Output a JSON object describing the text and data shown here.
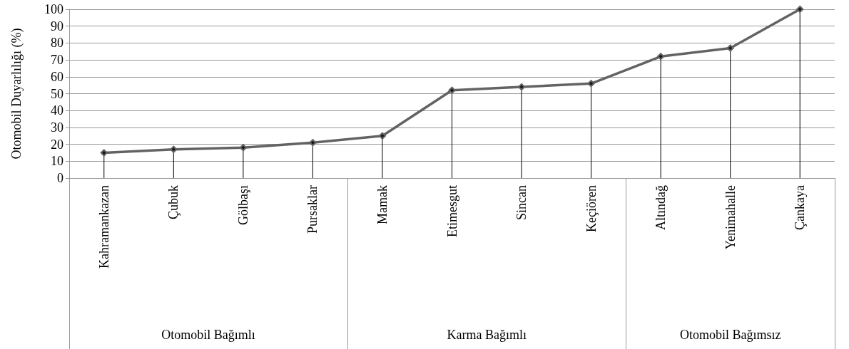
{
  "chart_data": {
    "type": "line",
    "ylabel": "Otomobil Duyarlılığı (%)",
    "categories": [
      "Kahramankazan",
      "Çubuk",
      "Gölbaşı",
      "Pursaklar",
      "Mamak",
      "Etimesgut",
      "Sincan",
      "Keçiören",
      "Altındağ",
      "Yenimahalle",
      "Çankaya"
    ],
    "series": [
      {
        "color": "#636363",
        "values": [
          15,
          17,
          18,
          21,
          25,
          52,
          54,
          56,
          72,
          77,
          100
        ]
      },
      {
        "type": "lollipop",
        "color": "#000000",
        "values": [
          15,
          17,
          18,
          21,
          25,
          52,
          54,
          56,
          72,
          77,
          100
        ]
      }
    ],
    "ylim": [
      0,
      100
    ],
    "yticks": [
      0,
      10,
      20,
      30,
      40,
      50,
      60,
      70,
      80,
      90,
      100
    ],
    "annotations": [
      "Otomobil Bağımlı",
      "Karma Bağımlı",
      "Otomobil Bağımsız"
    ],
    "grid": "y",
    "marker": "diamond",
    "line_style": "solid"
  }
}
